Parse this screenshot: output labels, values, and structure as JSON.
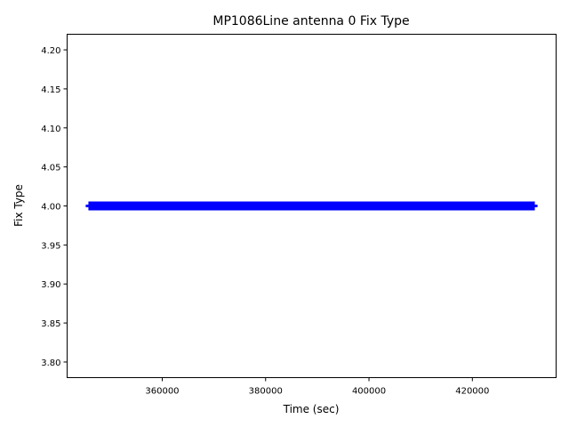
{
  "chart_data": {
    "type": "line",
    "title": "MP1086Line antenna 0 Fix Type",
    "xlabel": "Time (sec)",
    "ylabel": "Fix Type",
    "xlim": [
      341600,
      436200
    ],
    "ylim": [
      3.78,
      4.22
    ],
    "xticks": [
      360000,
      380000,
      400000,
      420000
    ],
    "xtick_labels": [
      "360000",
      "380000",
      "400000",
      "420000"
    ],
    "yticks": [
      3.8,
      3.85,
      3.9,
      3.95,
      4.0,
      4.05,
      4.1,
      4.15,
      4.2
    ],
    "ytick_labels": [
      "3.80",
      "3.85",
      "3.90",
      "3.95",
      "4.00",
      "4.05",
      "4.10",
      "4.15",
      "4.20"
    ],
    "grid": false,
    "series": [
      {
        "x": [
          345200,
          432600
        ],
        "y": [
          4.0,
          4.0
        ],
        "color": "#0000ff"
      }
    ]
  }
}
